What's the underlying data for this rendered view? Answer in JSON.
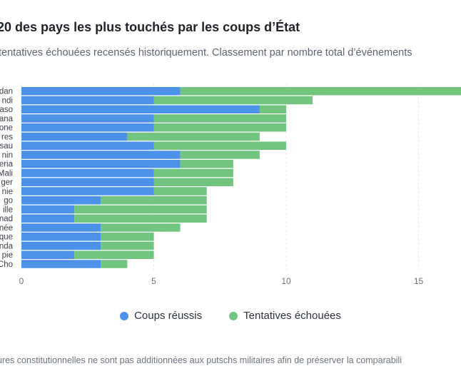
{
  "header": {
    "title": "20 des pays les plus touchés par les coups d’État",
    "subtitle": "tentatives échouées recensés historiquement. Classement par nombre total d’événements"
  },
  "footnote": "ures constitutionnelles ne sont pas additionnées aux putschs militaires afin de préserver la comparabili",
  "colors": {
    "success": "#4c92e8",
    "failed": "#72c57f",
    "grid": "#e6e8eb"
  },
  "chart_data": {
    "type": "bar",
    "orientation": "horizontal",
    "stacked": true,
    "categories": [
      "dan",
      "ndi",
      "aso",
      "ana",
      "one",
      "res",
      "sau",
      "nin",
      "eria",
      "Mali",
      "ger",
      "nie",
      "go",
      "ille",
      "nad",
      "née",
      "que",
      "nda",
      "pie",
      "Cho"
    ],
    "series": [
      {
        "name": "Coups réussis",
        "color": "#4c92e8",
        "values": [
          6,
          5,
          9,
          5,
          5,
          4,
          5,
          6,
          6,
          5,
          5,
          5,
          3,
          2,
          2,
          3,
          3,
          3,
          2,
          3
        ]
      },
      {
        "name": "Tentatives échouées",
        "color": "#72c57f",
        "values": [
          11,
          6,
          1,
          5,
          5,
          5,
          5,
          3,
          2,
          3,
          3,
          2,
          4,
          5,
          5,
          3,
          2,
          2,
          3,
          1
        ]
      }
    ],
    "xticks": [
      0,
      5,
      10,
      15
    ],
    "xlim": [
      0,
      17
    ],
    "grid": true,
    "legend": "bottom-center"
  }
}
